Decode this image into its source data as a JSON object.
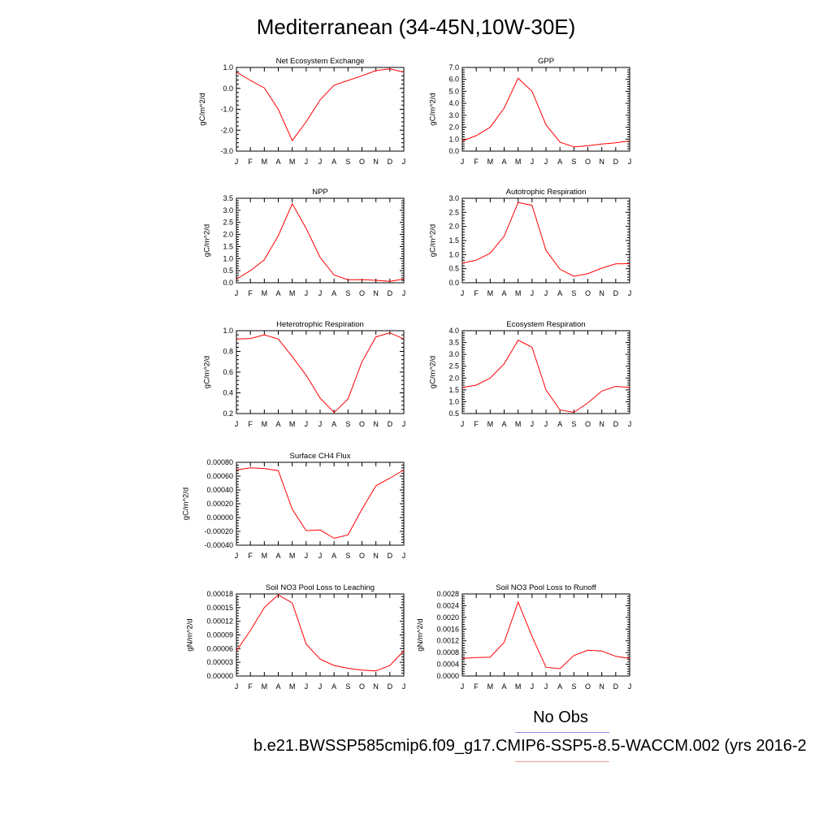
{
  "title": "Mediterranean (34-45N,10W-30E)",
  "legend": {
    "obs_label": "No Obs",
    "case_label": "b.e21.BWSSP585cmip6.f09_g17.CMIP6-SSP5-8.5-WACCM.002 (yrs 2016-2",
    "obs_color": "#8a8ae8",
    "case_color": "#f29a9a"
  },
  "series_color": "#ff0000",
  "chart_data": [
    {
      "type": "line",
      "title": "Net Ecosystem Exchange",
      "ylabel": "gC/m^2/d",
      "x": [
        "J",
        "F",
        "M",
        "A",
        "M",
        "J",
        "J",
        "A",
        "S",
        "O",
        "N",
        "D",
        "J"
      ],
      "ylim": [
        -3.0,
        1.0
      ],
      "yticks": [
        "-3.0",
        "-2.0",
        "-1.0",
        "0.0",
        "1.0"
      ],
      "yticks_values": [
        -3.0,
        -2.0,
        -1.0,
        0.0,
        1.0
      ],
      "values": [
        0.78,
        0.38,
        0.02,
        -1.0,
        -2.5,
        -1.6,
        -0.55,
        0.15,
        0.38,
        0.6,
        0.85,
        0.93,
        0.78
      ]
    },
    {
      "type": "line",
      "title": "GPP",
      "ylabel": "gC/m^2/d",
      "x": [
        "J",
        "F",
        "M",
        "A",
        "M",
        "J",
        "J",
        "A",
        "S",
        "O",
        "N",
        "D",
        "J"
      ],
      "ylim": [
        0.0,
        7.0
      ],
      "yticks": [
        "0.0",
        "1.0",
        "2.0",
        "3.0",
        "4.0",
        "5.0",
        "6.0",
        "7.0"
      ],
      "yticks_values": [
        0.0,
        1.0,
        2.0,
        3.0,
        4.0,
        5.0,
        6.0,
        7.0
      ],
      "values": [
        0.85,
        1.3,
        2.0,
        3.6,
        6.1,
        5.0,
        2.2,
        0.75,
        0.35,
        0.45,
        0.6,
        0.7,
        0.85
      ]
    },
    {
      "type": "line",
      "title": "NPP",
      "ylabel": "gC/m^2/d",
      "x": [
        "J",
        "F",
        "M",
        "A",
        "M",
        "J",
        "J",
        "A",
        "S",
        "O",
        "N",
        "D",
        "J"
      ],
      "ylim": [
        0.0,
        3.5
      ],
      "yticks": [
        "0.0",
        "0.5",
        "1.0",
        "1.5",
        "2.0",
        "2.5",
        "3.0",
        "3.5"
      ],
      "yticks_values": [
        0.0,
        0.5,
        1.0,
        1.5,
        2.0,
        2.5,
        3.0,
        3.5
      ],
      "values": [
        0.15,
        0.5,
        0.95,
        1.95,
        3.27,
        2.25,
        1.05,
        0.32,
        0.12,
        0.13,
        0.1,
        0.06,
        0.15
      ]
    },
    {
      "type": "line",
      "title": "Autotrophic Respiration",
      "ylabel": "gC/m^2/d",
      "x": [
        "J",
        "F",
        "M",
        "A",
        "M",
        "J",
        "J",
        "A",
        "S",
        "O",
        "N",
        "D",
        "J"
      ],
      "ylim": [
        0.0,
        3.0
      ],
      "yticks": [
        "0.0",
        "0.5",
        "1.0",
        "1.5",
        "2.0",
        "2.5",
        "3.0"
      ],
      "yticks_values": [
        0.0,
        0.5,
        1.0,
        1.5,
        2.0,
        2.5,
        3.0
      ],
      "values": [
        0.7,
        0.8,
        1.05,
        1.65,
        2.85,
        2.75,
        1.15,
        0.48,
        0.23,
        0.32,
        0.52,
        0.67,
        0.68
      ]
    },
    {
      "type": "line",
      "title": "Heterotrophic Respiration",
      "ylabel": "gC/m^2/d",
      "x": [
        "J",
        "F",
        "M",
        "A",
        "M",
        "J",
        "J",
        "A",
        "S",
        "O",
        "N",
        "D",
        "J"
      ],
      "ylim": [
        0.2,
        1.0
      ],
      "yticks": [
        "0.2",
        "0.4",
        "0.6",
        "0.8",
        "1.0"
      ],
      "yticks_values": [
        0.2,
        0.4,
        0.6,
        0.8,
        1.0
      ],
      "values": [
        0.92,
        0.925,
        0.96,
        0.92,
        0.75,
        0.57,
        0.35,
        0.21,
        0.34,
        0.7,
        0.94,
        0.98,
        0.92
      ]
    },
    {
      "type": "line",
      "title": "Ecosystem Respiration",
      "ylabel": "gC/m^2/d",
      "x": [
        "J",
        "F",
        "M",
        "A",
        "M",
        "J",
        "J",
        "A",
        "S",
        "O",
        "N",
        "D",
        "J"
      ],
      "ylim": [
        0.5,
        4.0
      ],
      "yticks": [
        "0.5",
        "1.0",
        "1.5",
        "2.0",
        "2.5",
        "3.0",
        "3.5",
        "4.0"
      ],
      "yticks_values": [
        0.5,
        1.0,
        1.5,
        2.0,
        2.5,
        3.0,
        3.5,
        4.0
      ],
      "values": [
        1.6,
        1.7,
        2.0,
        2.6,
        3.6,
        3.3,
        1.5,
        0.65,
        0.55,
        0.95,
        1.45,
        1.65,
        1.6
      ]
    },
    {
      "type": "line",
      "title": "Surface CH4 Flux",
      "ylabel": "gC/m^2/d",
      "x": [
        "J",
        "F",
        "M",
        "A",
        "M",
        "J",
        "J",
        "A",
        "S",
        "O",
        "N",
        "D",
        "J"
      ],
      "ylim": [
        -0.0004,
        0.0008
      ],
      "yticks": [
        "-0.00040",
        "-0.00020",
        "0.00000",
        "0.00020",
        "0.00040",
        "0.00060",
        "0.00080"
      ],
      "yticks_values": [
        -0.0004,
        -0.0002,
        0.0,
        0.0002,
        0.0004,
        0.0006,
        0.0008
      ],
      "values": [
        0.00069,
        0.00072,
        0.00071,
        0.00068,
        0.00012,
        -0.00019,
        -0.00018,
        -0.0003,
        -0.00025,
        0.00012,
        0.00046,
        0.00057,
        0.00069
      ]
    },
    {
      "type": "line",
      "title": "Soil NO3 Pool Loss to Leaching",
      "ylabel": "gN/m^2/d",
      "x": [
        "J",
        "F",
        "M",
        "A",
        "M",
        "J",
        "J",
        "A",
        "S",
        "O",
        "N",
        "D",
        "J"
      ],
      "ylim": [
        0.0,
        0.00018
      ],
      "yticks": [
        "0.00000",
        "0.00003",
        "0.00006",
        "0.00009",
        "0.00012",
        "0.00015",
        "0.00018"
      ],
      "yticks_values": [
        0.0,
        3e-05,
        6e-05,
        9e-05,
        0.00012,
        0.00015,
        0.00018
      ],
      "values": [
        5.5e-05,
        0.0001,
        0.00015,
        0.000178,
        0.00016,
        7e-05,
        3.7e-05,
        2.3e-05,
        1.7e-05,
        1.3e-05,
        1.1e-05,
        2.3e-05,
        5.5e-05
      ]
    },
    {
      "type": "line",
      "title": "Soil NO3 Pool Loss to Runoff",
      "ylabel": "gN/m^2/d",
      "x": [
        "J",
        "F",
        "M",
        "A",
        "M",
        "J",
        "J",
        "A",
        "S",
        "O",
        "N",
        "D",
        "J"
      ],
      "ylim": [
        0.0,
        0.0028
      ],
      "yticks": [
        "0.0000",
        "0.0004",
        "0.0008",
        "0.0012",
        "0.0016",
        "0.0020",
        "0.0024",
        "0.0028"
      ],
      "yticks_values": [
        0.0,
        0.0004,
        0.0008,
        0.0012,
        0.0016,
        0.002,
        0.0024,
        0.0028
      ],
      "values": [
        0.0006,
        0.00063,
        0.00064,
        0.00115,
        0.00252,
        0.00135,
        0.0003,
        0.00025,
        0.0007,
        0.00088,
        0.00085,
        0.00067,
        0.0006
      ]
    }
  ]
}
